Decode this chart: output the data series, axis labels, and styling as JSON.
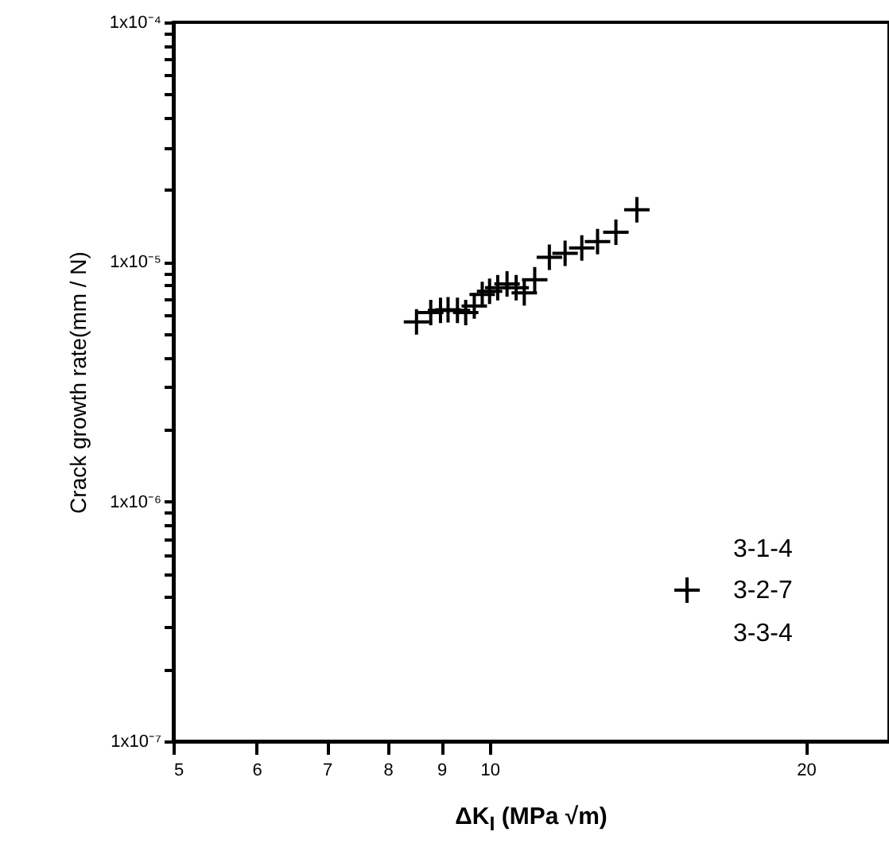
{
  "chart_data": {
    "type": "scatter",
    "xlabel": "ΔK$_{I}$ (MPa √m)",
    "ylabel": "Crack growth rate(mm / N)",
    "log": "xy",
    "grid": false,
    "legend": "bottom right",
    "x": [
      8.52,
      8.79,
      8.98,
      9.13,
      9.32,
      9.49,
      9.67,
      9.84,
      10.0,
      10.18,
      10.39,
      10.6,
      10.79,
      11.04,
      11.4,
      11.8,
      12.24,
      12.67,
      13.19,
      13.81
    ],
    "xlim": [
      5,
      24
    ],
    "xticks": [
      5,
      6,
      7,
      8,
      9,
      10,
      20
    ],
    "ylim": [
      1e-07,
      0.0001
    ],
    "yticks": [
      {
        "value": 1e-07,
        "label": "1x10⁻⁷"
      },
      {
        "value": 2e-07,
        "label": null
      },
      {
        "value": 3e-07,
        "label": null
      },
      {
        "value": 4e-07,
        "label": null
      },
      {
        "value": 5e-07,
        "label": null
      },
      {
        "value": 6e-07,
        "label": null
      },
      {
        "value": 7e-07,
        "label": null
      },
      {
        "value": 8e-07,
        "label": null
      },
      {
        "value": 9e-07,
        "label": null
      },
      {
        "value": 1e-06,
        "label": "1x10⁻⁶"
      },
      {
        "value": 2e-06,
        "label": null
      },
      {
        "value": 3e-06,
        "label": null
      },
      {
        "value": 4e-06,
        "label": null
      },
      {
        "value": 5e-06,
        "label": null
      },
      {
        "value": 6e-06,
        "label": null
      },
      {
        "value": 7e-06,
        "label": null
      },
      {
        "value": 8e-06,
        "label": null
      },
      {
        "value": 9e-06,
        "label": null
      },
      {
        "value": 1e-05,
        "label": "1x10⁻⁵"
      },
      {
        "value": 2e-05,
        "label": null
      },
      {
        "value": 3e-05,
        "label": null
      },
      {
        "value": 4e-05,
        "label": null
      },
      {
        "value": 5e-05,
        "label": null
      },
      {
        "value": 6e-05,
        "label": null
      },
      {
        "value": 7e-05,
        "label": null
      },
      {
        "value": 8e-05,
        "label": null
      },
      {
        "value": 9e-05,
        "label": null
      },
      {
        "value": 0.0001,
        "label": "1x10⁻⁴"
      }
    ],
    "series": [
      {
        "name": "3-1-4",
        "color": "#000000",
        "marker": "none",
        "values": [
          null,
          null,
          null,
          null,
          null,
          null,
          null,
          null,
          null,
          null,
          null,
          null,
          null,
          null,
          null,
          null,
          null,
          null,
          null,
          null
        ]
      },
      {
        "name": "3-2-7",
        "color": "#000000",
        "marker": "cross",
        "values": [
          5.62e-06,
          6.15e-06,
          6.28e-06,
          6.31e-06,
          6.28e-06,
          6.15e-06,
          6.55e-06,
          7.31e-06,
          7.54e-06,
          7.81e-06,
          8.1e-06,
          7.81e-06,
          7.43e-06,
          8.43e-06,
          1.045e-05,
          1.087e-05,
          1.143e-05,
          1.216e-05,
          1.33e-05,
          1.65e-05
        ]
      },
      {
        "name": "3-3-4",
        "color": "#000000",
        "marker": "none",
        "values": [
          null,
          null,
          null,
          null,
          null,
          null,
          null,
          null,
          null,
          null,
          null,
          null,
          null,
          null,
          null,
          null,
          null,
          null,
          null,
          null
        ]
      }
    ]
  }
}
